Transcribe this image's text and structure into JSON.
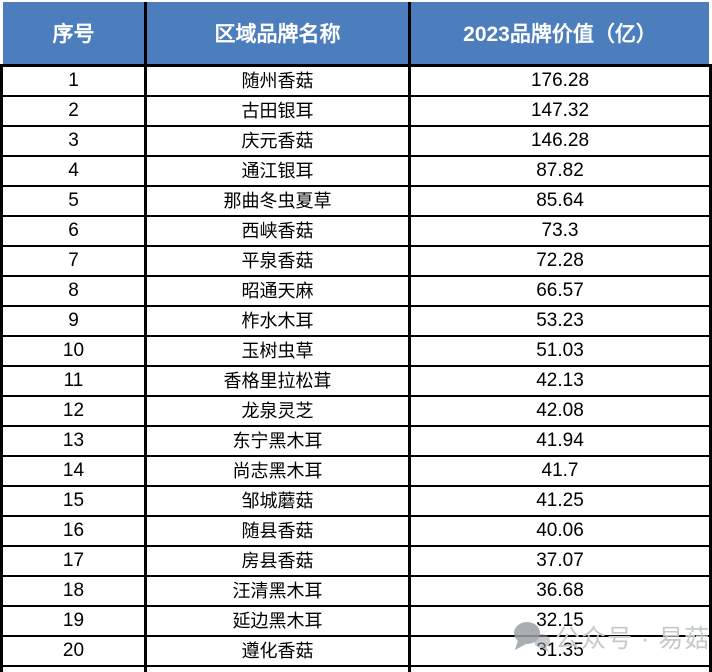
{
  "table": {
    "columns": [
      "序号",
      "区域品牌名称",
      "2023品牌价值（亿）"
    ],
    "rows": [
      {
        "index": "1",
        "name": "随州香菇",
        "value": "176.28"
      },
      {
        "index": "2",
        "name": "古田银耳",
        "value": "147.32"
      },
      {
        "index": "3",
        "name": "庆元香菇",
        "value": "146.28"
      },
      {
        "index": "4",
        "name": "通江银耳",
        "value": "87.82"
      },
      {
        "index": "5",
        "name": "那曲冬虫夏草",
        "value": "85.64"
      },
      {
        "index": "6",
        "name": "西峡香菇",
        "value": "73.3"
      },
      {
        "index": "7",
        "name": "平泉香菇",
        "value": "72.28"
      },
      {
        "index": "8",
        "name": "昭通天麻",
        "value": "66.57"
      },
      {
        "index": "9",
        "name": "柞水木耳",
        "value": "53.23"
      },
      {
        "index": "10",
        "name": "玉树虫草",
        "value": "51.03"
      },
      {
        "index": "11",
        "name": "香格里拉松茸",
        "value": "42.13"
      },
      {
        "index": "12",
        "name": "龙泉灵芝",
        "value": "42.08"
      },
      {
        "index": "13",
        "name": "东宁黑木耳",
        "value": "41.94"
      },
      {
        "index": "14",
        "name": "尚志黑木耳",
        "value": "41.7"
      },
      {
        "index": "15",
        "name": "邹城蘑菇",
        "value": "41.25"
      },
      {
        "index": "16",
        "name": "随县香菇",
        "value": "40.06"
      },
      {
        "index": "17",
        "name": "房县香菇",
        "value": "37.07"
      },
      {
        "index": "18",
        "name": "汪清黑木耳",
        "value": "36.68"
      },
      {
        "index": "19",
        "name": "延边黑木耳",
        "value": "32.15"
      },
      {
        "index": "20",
        "name": "遵化香菇",
        "value": "31.35"
      }
    ]
  },
  "watermark": {
    "icon": "chat-bubbles-icon",
    "text": "公众号 · 易菇网"
  },
  "colors": {
    "header_bg": "#4c7ebd",
    "header_text": "#ffffff",
    "border": "#000000",
    "body_text": "#000000",
    "watermark_text": "#c6c9cb",
    "watermark_icon": "#9aa0a4"
  },
  "chart_data": {
    "type": "table",
    "columns": [
      "序号",
      "区域品牌名称",
      "2023品牌价值（亿）"
    ],
    "categories": [
      "随州香菇",
      "古田银耳",
      "庆元香菇",
      "通江银耳",
      "那曲冬虫夏草",
      "西峡香菇",
      "平泉香菇",
      "昭通天麻",
      "柞水木耳",
      "玉树虫草",
      "香格里拉松茸",
      "龙泉灵芝",
      "东宁黑木耳",
      "尚志黑木耳",
      "邹城蘑菇",
      "随县香菇",
      "房县香菇",
      "汪清黑木耳",
      "延边黑木耳",
      "遵化香菇"
    ],
    "values": [
      176.28,
      147.32,
      146.28,
      87.82,
      85.64,
      73.3,
      72.28,
      66.57,
      53.23,
      51.03,
      42.13,
      42.08,
      41.94,
      41.7,
      41.25,
      40.06,
      37.07,
      36.68,
      32.15,
      31.35
    ],
    "title": "",
    "xlabel": "",
    "ylabel": "2023品牌价值（亿）"
  }
}
